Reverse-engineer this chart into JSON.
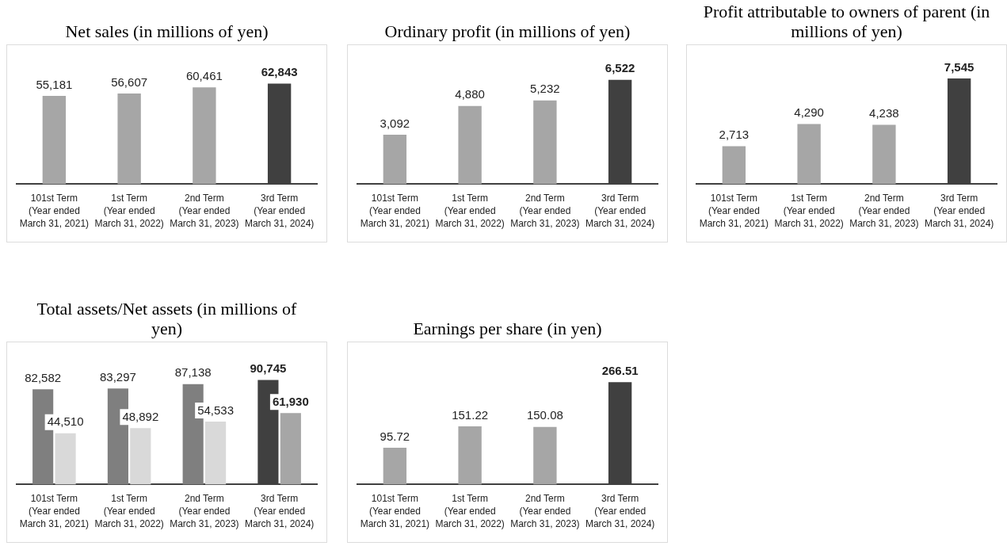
{
  "chart_data": [
    {
      "type": "bar",
      "title": "Net sales (in millions of yen)",
      "categories": [
        "101st Term (Year ended March 31, 2021)",
        "1st Term (Year ended March 31, 2022)",
        "2nd Term (Year ended March 31, 2023)",
        "3rd Term (Year ended March 31, 2024)"
      ],
      "values": [
        55181,
        56607,
        60461,
        62843
      ],
      "colors": [
        "#a6a6a6",
        "#a6a6a6",
        "#a6a6a6",
        "#404040"
      ],
      "value_labels": [
        "55,181",
        "56,607",
        "60,461",
        "62,843"
      ],
      "grid": false,
      "legend": false
    },
    {
      "type": "bar",
      "title": "Ordinary profit (in millions of yen)",
      "categories": [
        "101st Term (Year ended March 31, 2021)",
        "1st Term (Year ended March 31, 2022)",
        "2nd Term (Year ended March 31, 2023)",
        "3rd Term (Year ended March 31, 2024)"
      ],
      "values": [
        3092,
        4880,
        5232,
        6522
      ],
      "colors": [
        "#a6a6a6",
        "#a6a6a6",
        "#a6a6a6",
        "#404040"
      ],
      "value_labels": [
        "3,092",
        "4,880",
        "5,232",
        "6,522"
      ],
      "grid": false,
      "legend": false
    },
    {
      "type": "bar",
      "title": "Profit attributable to owners of parent (in millions of yen)",
      "categories": [
        "101st Term (Year ended March 31, 2021)",
        "1st Term (Year ended March 31, 2022)",
        "2nd Term (Year ended March 31, 2023)",
        "3rd Term (Year ended March 31, 2024)"
      ],
      "values": [
        2713,
        4290,
        4238,
        7545
      ],
      "colors": [
        "#a6a6a6",
        "#a6a6a6",
        "#a6a6a6",
        "#404040"
      ],
      "value_labels": [
        "2,713",
        "4,290",
        "4,238",
        "7,545"
      ],
      "grid": false,
      "legend": false
    },
    {
      "type": "bar",
      "title": "Total assets/Net assets (in millions of yen)",
      "categories": [
        "101st Term (Year ended March 31, 2021)",
        "1st Term (Year ended March 31, 2022)",
        "2nd Term (Year ended March 31, 2023)",
        "3rd Term (Year ended March 31, 2024)"
      ],
      "series": [
        {
          "colors": [
            "#7f7f7f",
            "#7f7f7f",
            "#7f7f7f",
            "#404040"
          ],
          "values": [
            82582,
            83297,
            87138,
            90745
          ],
          "value_labels": [
            "82,582",
            "83,297",
            "87,138",
            "90,745"
          ]
        },
        {
          "colors": [
            "#d9d9d9",
            "#d9d9d9",
            "#d9d9d9",
            "#a6a6a6"
          ],
          "values": [
            44510,
            48892,
            54533,
            61930
          ],
          "value_labels": [
            "44,510",
            "48,892",
            "54,533",
            "61,930"
          ]
        }
      ],
      "grid": false,
      "legend": false
    },
    {
      "type": "bar",
      "title": "Earnings per share (in yen)",
      "categories": [
        "101st Term (Year ended March 31, 2021)",
        "1st Term (Year ended March 31, 2022)",
        "2nd Term (Year ended March 31, 2023)",
        "3rd Term (Year ended March 31, 2024)"
      ],
      "values": [
        95.72,
        151.22,
        150.08,
        266.51
      ],
      "colors": [
        "#a6a6a6",
        "#a6a6a6",
        "#a6a6a6",
        "#404040"
      ],
      "value_labels": [
        "95.72",
        "151.22",
        "150.08",
        "266.51"
      ],
      "grid": false,
      "legend": false
    }
  ]
}
